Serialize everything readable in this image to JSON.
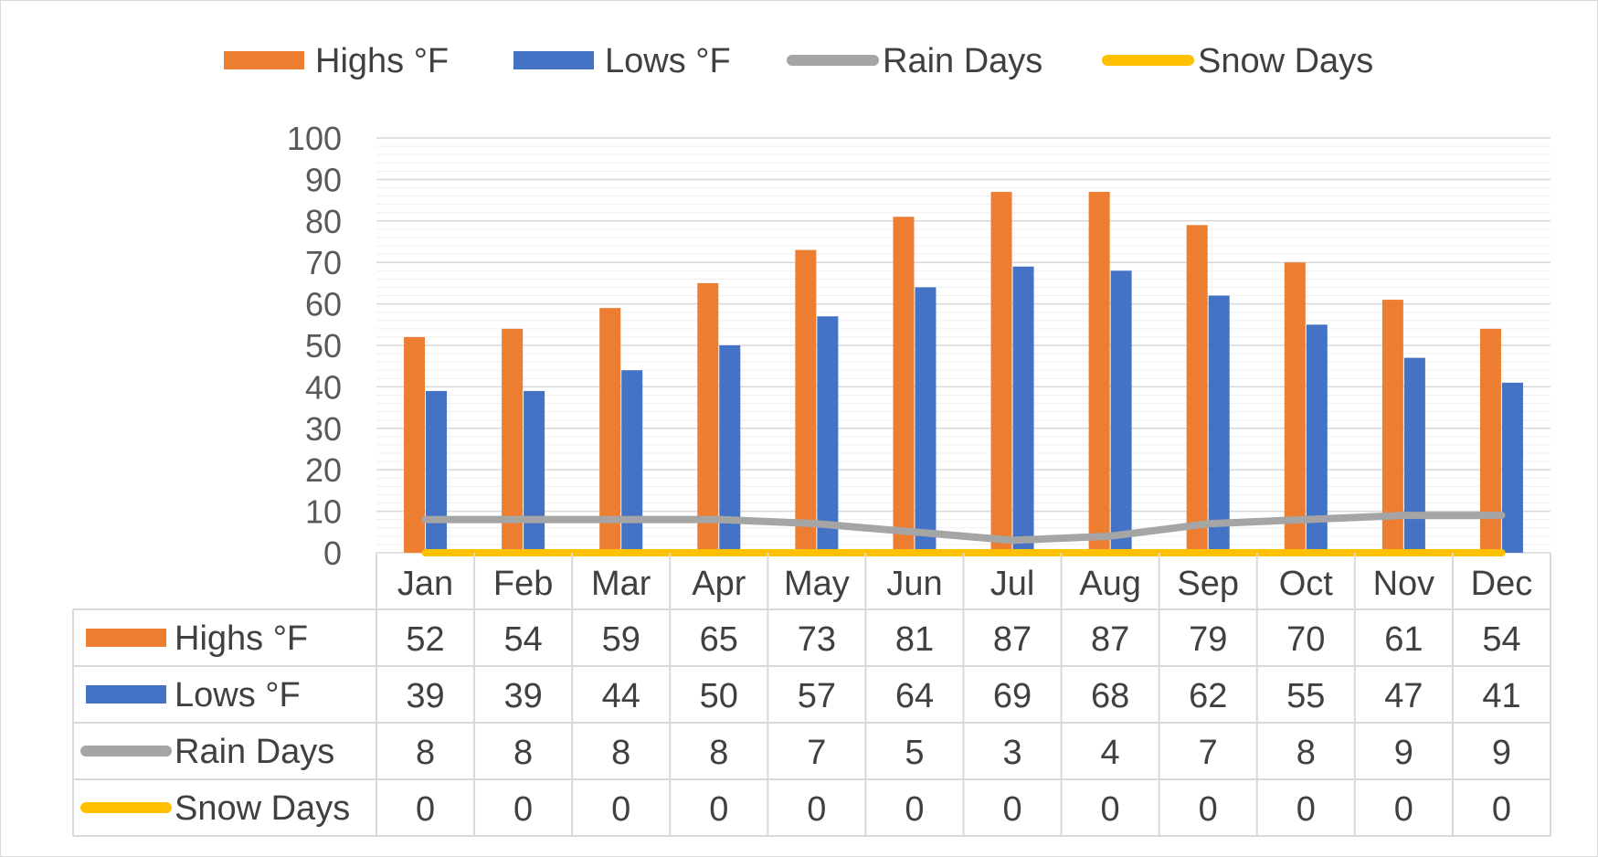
{
  "colors": {
    "highs": "#ED7D31",
    "lows": "#4472C4",
    "rain": "#A5A5A5",
    "snow": "#FFC000",
    "grid": "#D9D9D9",
    "border": "#D9D9D9",
    "text": "#404040"
  },
  "legend": [
    {
      "label": "Highs °F",
      "key": "highs",
      "kind": "bar"
    },
    {
      "label": "Lows °F",
      "key": "lows",
      "kind": "bar"
    },
    {
      "label": "Rain Days",
      "key": "rain",
      "kind": "line"
    },
    {
      "label": "Snow Days",
      "key": "snow",
      "kind": "line"
    }
  ],
  "chart_data": {
    "type": "bar",
    "title": "",
    "xlabel": "",
    "ylabel": "",
    "ylim": [
      0,
      100
    ],
    "yticks": [
      0,
      10,
      20,
      30,
      40,
      50,
      60,
      70,
      80,
      90,
      100
    ],
    "grid": true,
    "legend_position": "top",
    "data_table": true,
    "categories": [
      "Jan",
      "Feb",
      "Mar",
      "Apr",
      "May",
      "Jun",
      "Jul",
      "Aug",
      "Sep",
      "Oct",
      "Nov",
      "Dec"
    ],
    "series": [
      {
        "name": "Highs °F",
        "key": "highs",
        "type": "bar",
        "values": [
          52,
          54,
          59,
          65,
          73,
          81,
          87,
          87,
          79,
          70,
          61,
          54
        ]
      },
      {
        "name": "Lows °F",
        "key": "lows",
        "type": "bar",
        "values": [
          39,
          39,
          44,
          50,
          57,
          64,
          69,
          68,
          62,
          55,
          47,
          41
        ]
      },
      {
        "name": "Rain Days",
        "key": "rain",
        "type": "line",
        "values": [
          8,
          8,
          8,
          8,
          7,
          5,
          3,
          4,
          7,
          8,
          9,
          9
        ]
      },
      {
        "name": "Snow Days",
        "key": "snow",
        "type": "line",
        "values": [
          0,
          0,
          0,
          0,
          0,
          0,
          0,
          0,
          0,
          0,
          0,
          0
        ]
      }
    ]
  }
}
